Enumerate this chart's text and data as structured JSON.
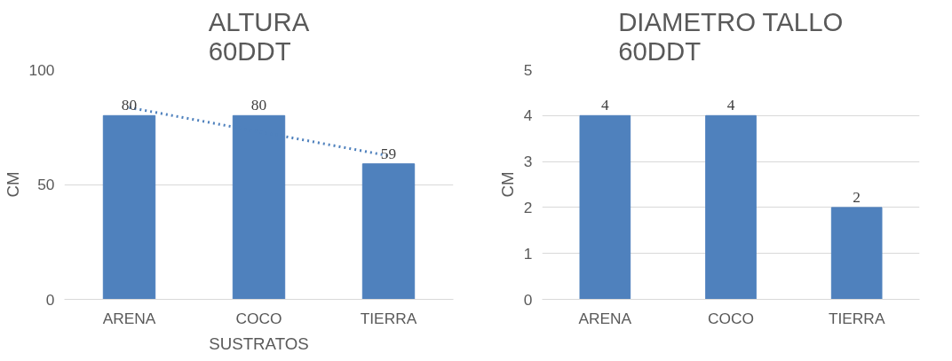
{
  "chart_data": [
    {
      "type": "bar",
      "title": "ALTURA 60DDT",
      "xlabel": "SUSTRATOS",
      "ylabel": "CM",
      "categories": [
        "ARENA",
        "COCO",
        "TIERRA"
      ],
      "series": [
        {
          "color": "#4f81bd",
          "values": [
            80,
            80,
            59
          ],
          "value_labels": [
            "80",
            "80",
            "59"
          ]
        },
        {
          "type": "line",
          "color": "#4f81bd",
          "x": [
            "ARENA",
            "TIERRA"
          ],
          "values": [
            83.5,
            62.5
          ],
          "line_style": "dotted"
        }
      ],
      "ylim": [
        0,
        100
      ],
      "yticks": [
        0,
        50,
        100
      ],
      "grid": "y"
    },
    {
      "type": "bar",
      "title": "DIAMETRO TALLO 60DDT",
      "ylabel": "CM",
      "categories": [
        "ARENA",
        "COCO",
        "TIERRA"
      ],
      "series": [
        {
          "color": "#4f81bd",
          "values": [
            4,
            4,
            2
          ],
          "value_labels": [
            "4",
            "4",
            "2"
          ]
        }
      ],
      "ylim": [
        0,
        5
      ],
      "yticks": [
        0,
        1,
        2,
        3,
        4,
        5
      ],
      "grid": "y"
    }
  ]
}
